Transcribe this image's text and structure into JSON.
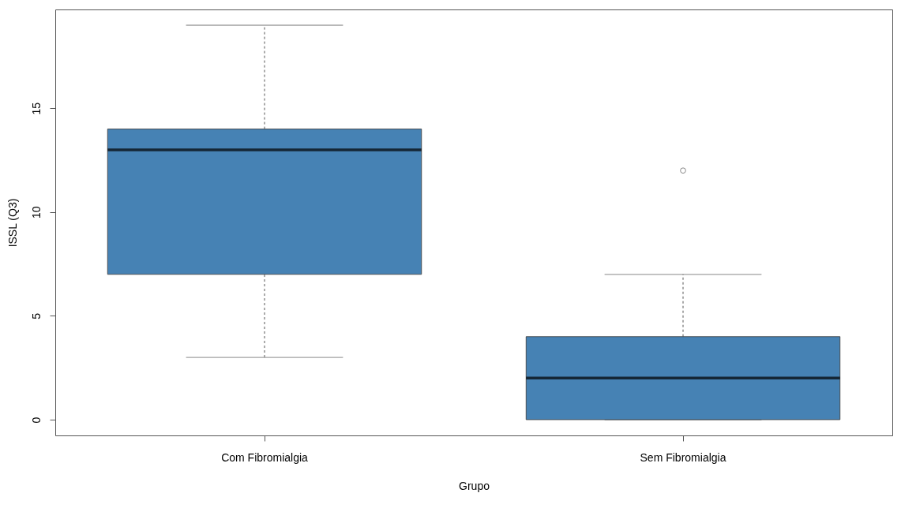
{
  "chart_data": {
    "type": "box",
    "xlabel": "Grupo",
    "ylabel": "ISSL (Q3)",
    "categories": [
      "Com Fibromialgia",
      "Sem Fibromialgia"
    ],
    "color": "#4682b4",
    "boxes": [
      {
        "low": 3,
        "q1": 7,
        "median": 13,
        "q3": 14,
        "high": 19
      },
      {
        "low": 0,
        "q1": 0,
        "median": 2,
        "q3": 4,
        "high": 7,
        "outliers": [
          12
        ]
      }
    ],
    "ylim": [
      -0.76,
      19.76
    ],
    "yticks": [
      0,
      5,
      10,
      15
    ],
    "grid": false
  }
}
